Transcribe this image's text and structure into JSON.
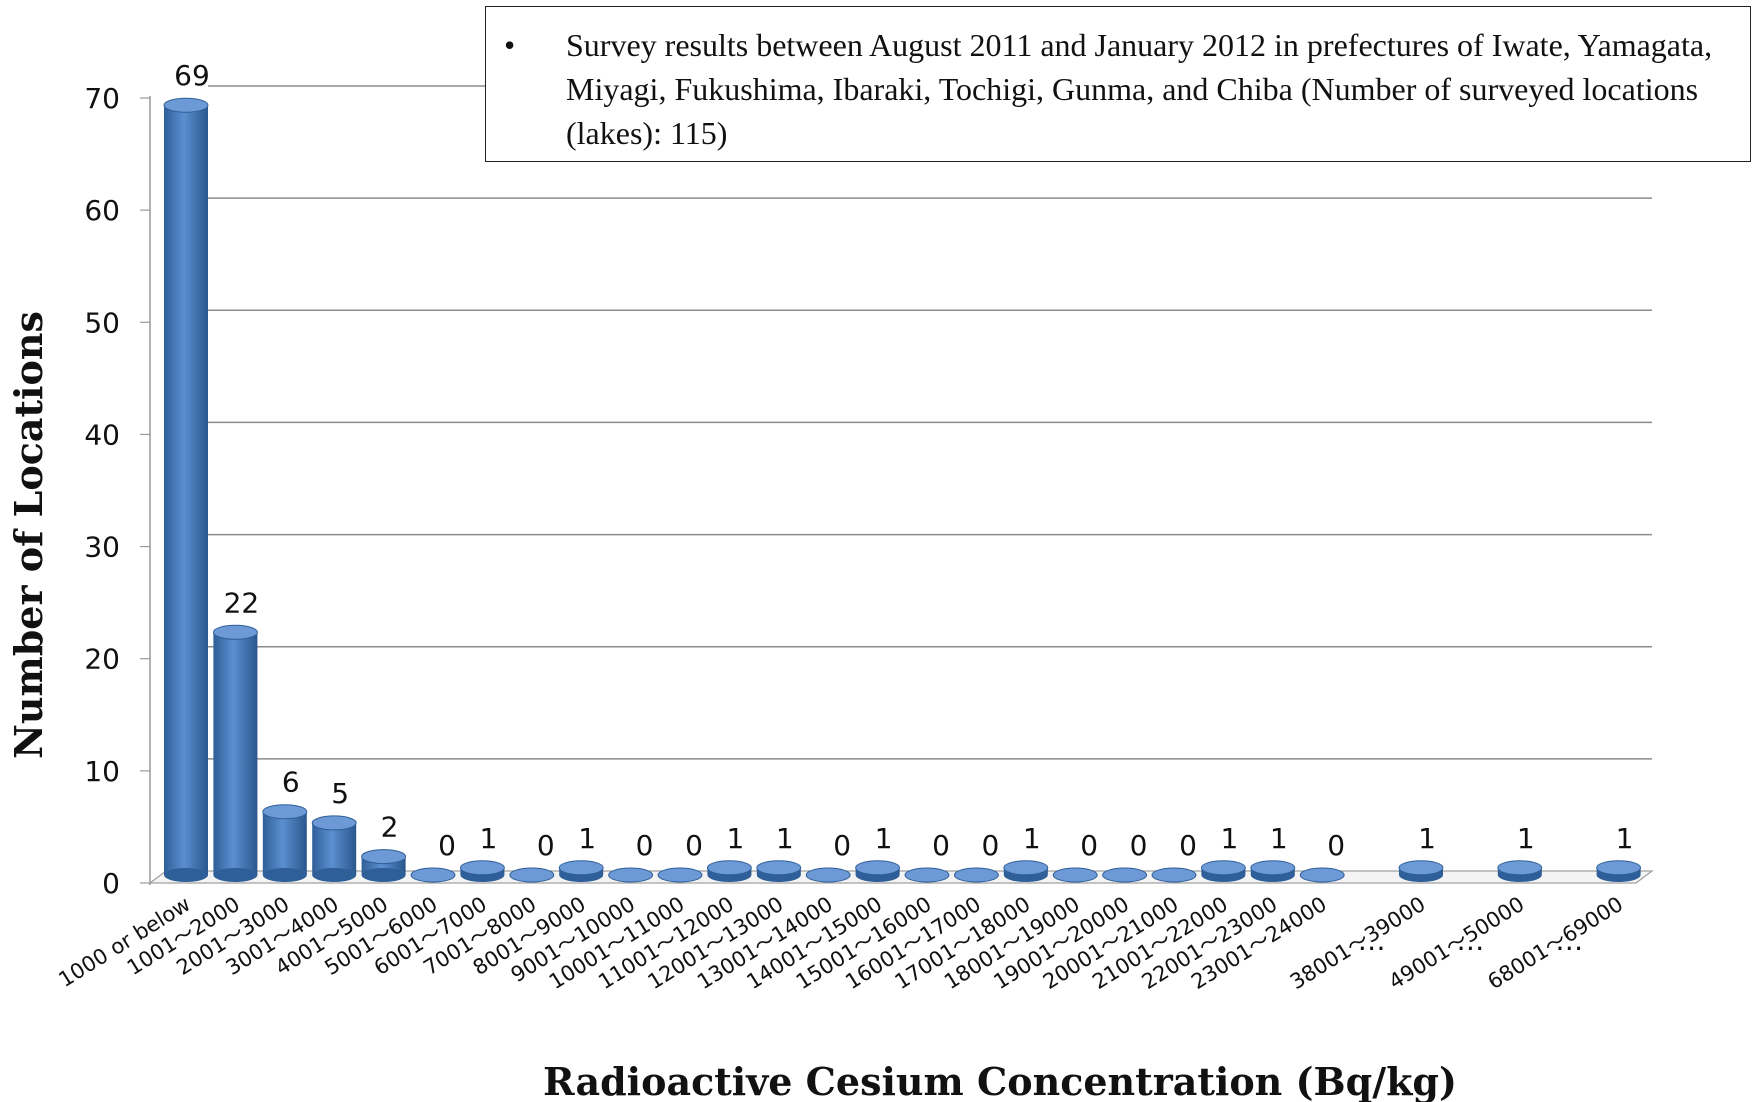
{
  "chart_data": {
    "type": "bar",
    "xlabel": "Radioactive Cesium Concentration (Bq/kg)",
    "ylabel": "Number of Locations",
    "ylim": [
      0,
      70
    ],
    "yticks": [
      0,
      10,
      20,
      30,
      40,
      50,
      60,
      70
    ],
    "grid": true,
    "annotation": "Survey results between August 2011 and January 2012 in prefectures of Iwate, Yamagata, Miyagi, Fukushima, Ibaraki, Tochigi, Gunma, and Chiba (Number of surveyed locations (lakes): 115)",
    "annotation_bullet": "•",
    "gap_marker": "…",
    "categories": [
      "1000 or below",
      "1001～2000",
      "2001～3000",
      "3001～4000",
      "4001～5000",
      "5001～6000",
      "6001～7000",
      "7001～8000",
      "8001～9000",
      "9001～10000",
      "10001～11000",
      "11001～12000",
      "12001～13000",
      "13001～14000",
      "14001～15000",
      "15001～16000",
      "16001～17000",
      "17001～18000",
      "18001～19000",
      "19001～20000",
      "20001～21000",
      "21001～22000",
      "22001～23000",
      "23001～24000",
      "38001～39000",
      "49001～50000",
      "68001～69000"
    ],
    "values": [
      69,
      22,
      6,
      5,
      2,
      0,
      1,
      0,
      1,
      0,
      0,
      1,
      1,
      0,
      1,
      0,
      0,
      1,
      0,
      0,
      0,
      1,
      1,
      0,
      1,
      1,
      1
    ],
    "bar_color": "#4f81bd"
  }
}
